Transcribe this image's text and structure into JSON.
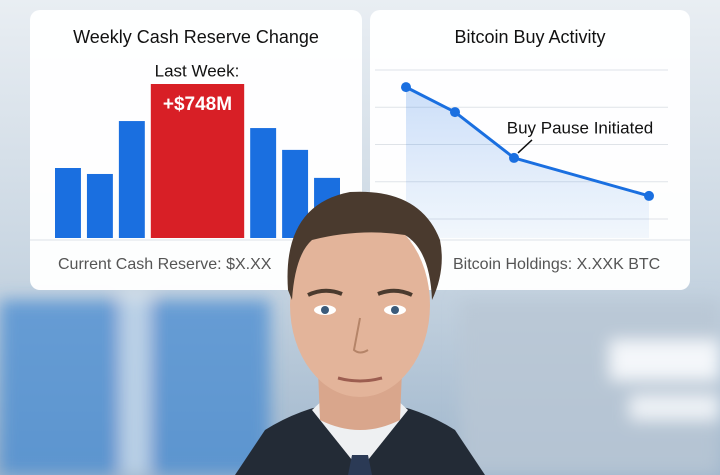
{
  "chart_data": [
    {
      "type": "bar",
      "title": "Weekly Cash Reserve Change",
      "annotation": "Last Week:",
      "categories": [
        null,
        null,
        null,
        null,
        null,
        null,
        null
      ],
      "values": [
        340,
        311,
        568,
        748,
        534,
        428,
        292
      ],
      "value_labels": [
        null,
        null,
        null,
        "+$748M",
        null,
        null,
        null
      ],
      "colors": [
        "#1a6fe0",
        "#1a6fe0",
        "#1a6fe0",
        "#d81f26",
        "#1a6fe0",
        "#1a6fe0",
        "#1a6fe0"
      ],
      "footer": "Current Cash Reserve: $X.XX"
    },
    {
      "type": "line",
      "title": "Bitcoin Buy Activity",
      "annotation": "Buy Pause Initiated",
      "categories": [
        null,
        null,
        null,
        null
      ],
      "values": [
        3.54,
        2.87,
        1.64,
        0.62
      ],
      "color": "#1a6fe0",
      "ylim": [
        0,
        4
      ],
      "yticks": [
        0,
        1,
        2,
        3,
        4
      ],
      "grid": true,
      "footer": "Bitcoin Holdings: X.XXK BTC"
    }
  ]
}
